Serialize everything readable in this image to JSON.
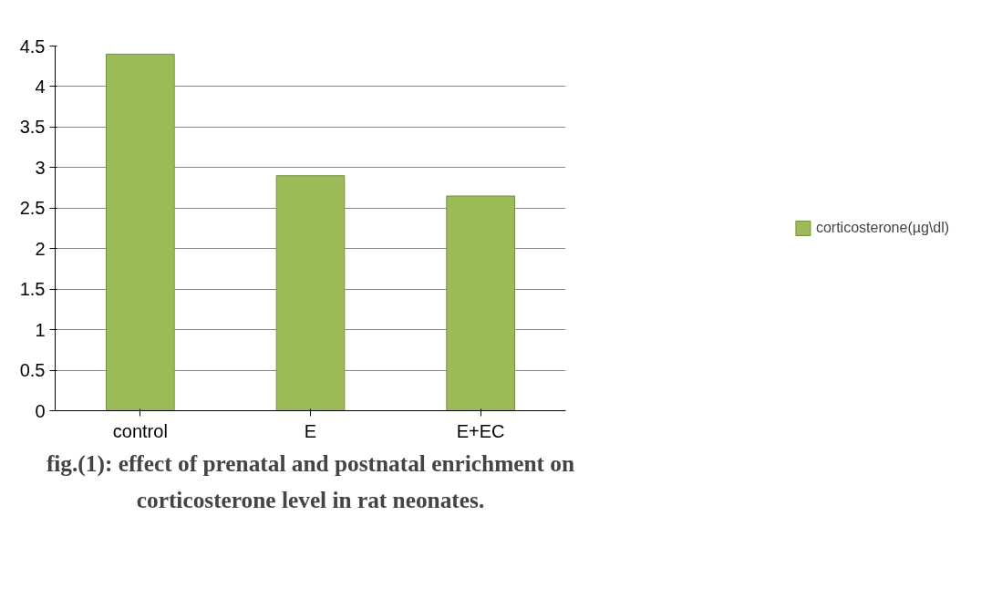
{
  "chart_data": {
    "type": "bar",
    "title": "fig.(1): effect of prenatal and postnatal enrichment on\ncorticosterone level in rat neonates.",
    "categories": [
      "control",
      "E",
      "E+EC"
    ],
    "series": [
      {
        "name": "corticosterone(µg\\dl)",
        "color": "#9bbb59",
        "values": [
          4.4,
          2.9,
          2.65
        ]
      }
    ],
    "ylim": [
      0,
      4.5
    ],
    "yticks": [
      0,
      0.5,
      1,
      1.5,
      2,
      2.5,
      3,
      3.5,
      4,
      4.5
    ],
    "grid": "y",
    "legend": "right"
  }
}
